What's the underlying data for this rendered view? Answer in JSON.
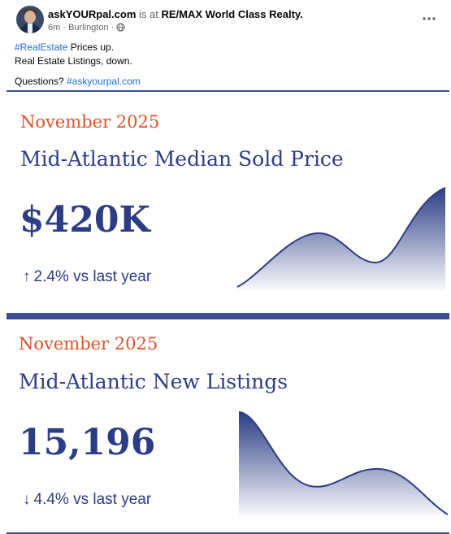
{
  "post": {
    "author": "askYOURpal.com",
    "connector": " is at ",
    "place": "RE/MAX World Class Realty.",
    "time": "6m",
    "location": "Burlington",
    "lines": {
      "l1_tag": "#RealEstate",
      "l1_rest": " Prices up.",
      "l2": "Real Estate Listings, down.",
      "l3_pre": "Questions? ",
      "l3_tag": "#askyourpal.com"
    },
    "icons": {
      "avatar": "profile-photo",
      "globe": "globe-icon",
      "more": "more-options-icon"
    }
  },
  "cards": [
    {
      "month": "November 2025",
      "title": "Mid-Atlantic Median Sold Price",
      "value": "$420K",
      "arrow": "↑",
      "change": "2.4% vs last year",
      "trend": "up"
    },
    {
      "month": "November 2025",
      "title": "Mid-Atlantic New Listings",
      "value": "15,196",
      "arrow": "↓",
      "change": "4.4% vs last year",
      "trend": "down"
    }
  ],
  "colors": {
    "accent": "#e0522a",
    "navy": "#2b3d85",
    "link": "#216fdb",
    "meta": "#65676b"
  }
}
